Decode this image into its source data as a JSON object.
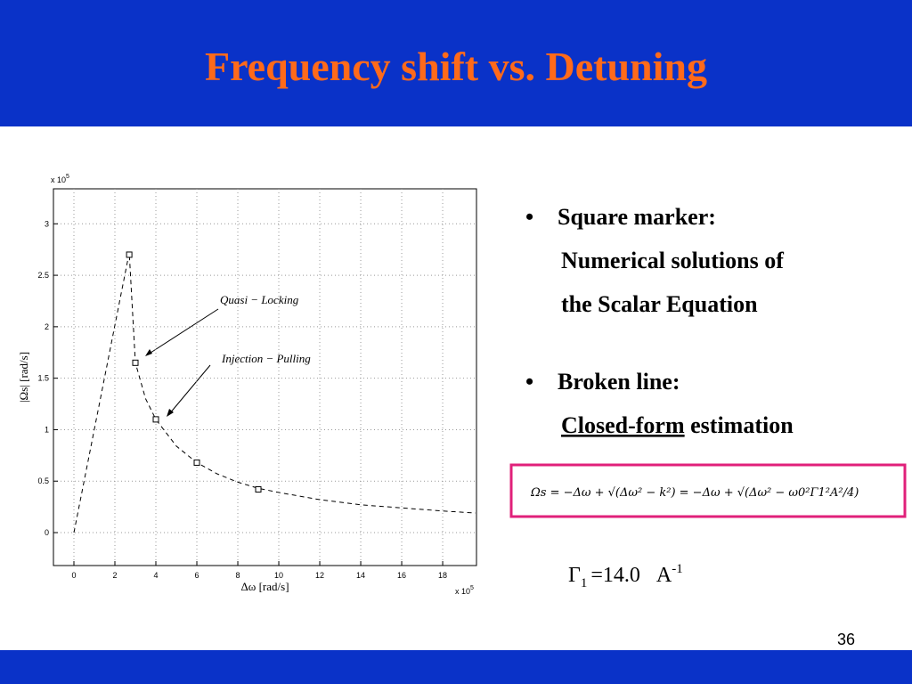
{
  "header": {
    "title": "Frequency shift vs. Detuning"
  },
  "chart_data": {
    "type": "line",
    "x_label": "Δω [rad/s]",
    "y_label": "|Ωs| [rad/s]",
    "x_multiplier": "x 10",
    "x_multiplier_exp": "5",
    "y_multiplier": "x 10",
    "y_multiplier_exp": "5",
    "x": [
      0,
      2.7,
      3,
      3.5,
      4,
      5,
      6,
      7,
      8,
      9,
      10,
      12,
      14,
      16,
      18,
      19.6
    ],
    "values": [
      0,
      2.72,
      1.65,
      1.3,
      1.1,
      0.84,
      0.68,
      0.57,
      0.49,
      0.43,
      0.39,
      0.32,
      0.27,
      0.24,
      0.21,
      0.19
    ],
    "markers": {
      "x": [
        2.7,
        3,
        4,
        6,
        9
      ],
      "values": [
        2.7,
        1.65,
        1.1,
        0.68,
        0.42
      ]
    },
    "annotations": [
      "Quasi − Locking",
      "Injection − Pulling"
    ],
    "xlim": [
      -1,
      19.65
    ],
    "ylim": [
      -0.32,
      3.34
    ],
    "xticks": [
      0,
      2,
      4,
      6,
      8,
      10,
      12,
      14,
      16,
      18
    ],
    "yticks": [
      0,
      0.5,
      1,
      1.5,
      2,
      2.5,
      3
    ],
    "grid": true,
    "color": "#000000"
  },
  "bullets": [
    {
      "head": "Square marker:",
      "lines": [
        "Numerical solutions of",
        "the Scalar Equation"
      ]
    },
    {
      "head": "Broken line:",
      "underlined": "Closed-form",
      "rest": " estimation"
    }
  ],
  "formula": "Ωs = −Δω + √(Δω² − k²) = −Δω + √(Δω² − ω0²Γ1²A²/4)",
  "gamma": {
    "symbol": "Γ",
    "subscript": "1",
    "value": "=14.0",
    "unit": "A",
    "exponent": "-1"
  },
  "page_number": "36"
}
